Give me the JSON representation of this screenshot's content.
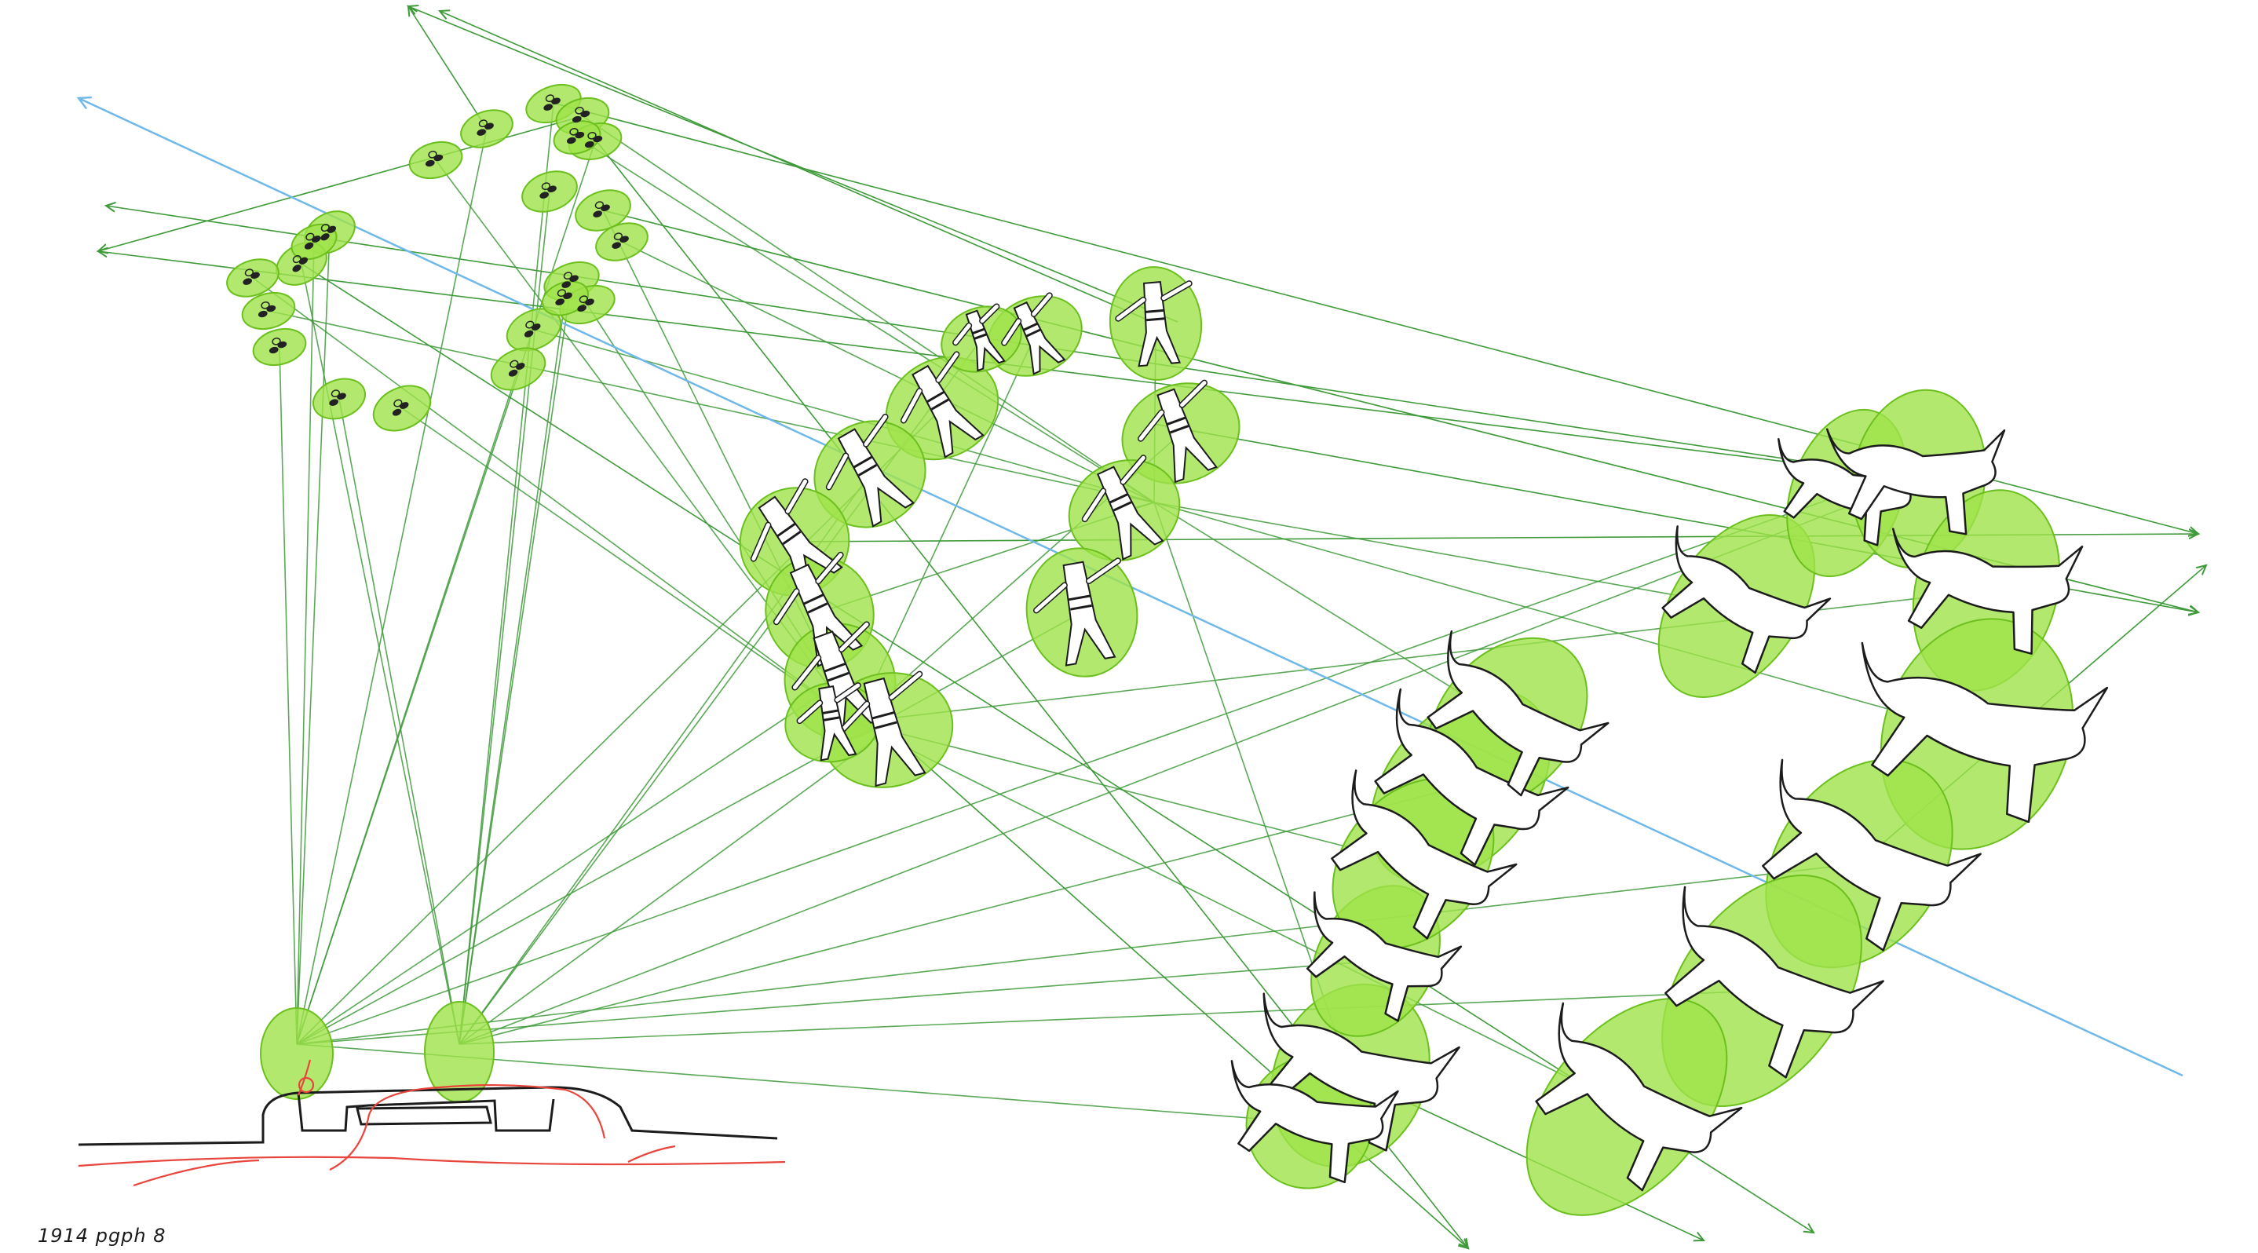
{
  "caption": "1914  pgph 8",
  "colors": {
    "background": "#ffffff",
    "ellipse_fill": "#9fe24a",
    "ellipse_stroke": "#6cc01e",
    "sight_line": "#3f9a3a",
    "axis_line": "#6fb8e8",
    "figure_fill": "#ffffff",
    "figure_stroke": "#1c1c1c",
    "ground_line": "#1c1c1c",
    "vessel_line": "#e8453c"
  },
  "groups": [
    {
      "name": "flies",
      "icon": "fly-icon",
      "count": 22
    },
    {
      "name": "people",
      "icon": "person-icon",
      "count": 13
    },
    {
      "name": "animals",
      "icon": "animal-icon",
      "count": 14
    },
    {
      "name": "observers",
      "icon": "observer-icon",
      "count": 2
    }
  ]
}
